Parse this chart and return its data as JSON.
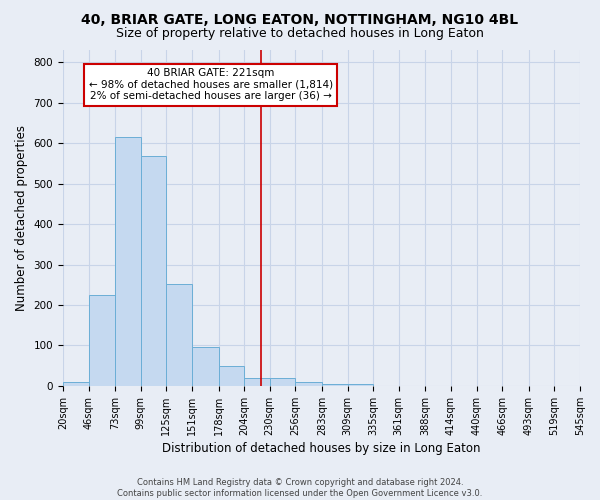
{
  "title": "40, BRIAR GATE, LONG EATON, NOTTINGHAM, NG10 4BL",
  "subtitle": "Size of property relative to detached houses in Long Eaton",
  "xlabel": "Distribution of detached houses by size in Long Eaton",
  "ylabel": "Number of detached properties",
  "bin_edges": [
    20,
    46,
    73,
    99,
    125,
    151,
    178,
    204,
    230,
    256,
    283,
    309,
    335,
    361,
    388,
    414,
    440,
    466,
    493,
    519,
    545
  ],
  "bar_heights": [
    10,
    225,
    615,
    568,
    252,
    97,
    50,
    20,
    20,
    10,
    5,
    5,
    0,
    0,
    0,
    0,
    0,
    0,
    0,
    0
  ],
  "bar_color": "#c5d9f0",
  "bar_edge_color": "#6baed6",
  "grid_color": "#c8d4e8",
  "background_color": "#e8edf5",
  "vline_x": 221,
  "vline_color": "#cc0000",
  "annotation_text": "40 BRIAR GATE: 221sqm\n← 98% of detached houses are smaller (1,814)\n2% of semi-detached houses are larger (36) →",
  "annotation_box_color": "#cc0000",
  "annotation_bg": "#ffffff",
  "footer_text": "Contains HM Land Registry data © Crown copyright and database right 2024.\nContains public sector information licensed under the Open Government Licence v3.0.",
  "ylim": [
    0,
    830
  ],
  "yticks": [
    0,
    100,
    200,
    300,
    400,
    500,
    600,
    700,
    800
  ],
  "title_fontsize": 10,
  "subtitle_fontsize": 9,
  "tick_fontsize": 7,
  "ylabel_fontsize": 8.5,
  "xlabel_fontsize": 8.5,
  "footer_fontsize": 6.0
}
